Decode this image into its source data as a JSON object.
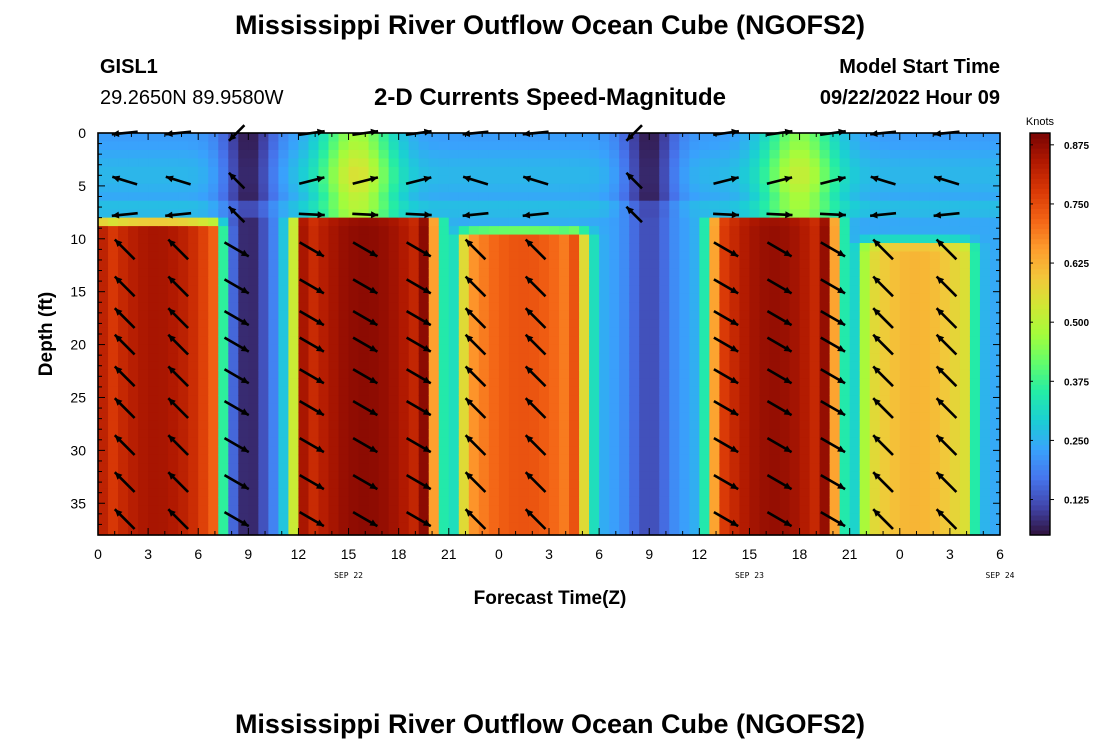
{
  "header": {
    "title": "Mississippi River Outflow Ocean Cube (NGOFS2)",
    "station": "GISL1",
    "coords": "29.2650N  89.9580W",
    "subtitle": "2-D Currents Speed-Magnitude",
    "model_start_label": "Model Start Time",
    "model_start_value": "09/22/2022 Hour 09"
  },
  "footer": {
    "title": "Mississippi River Outflow Ocean Cube (NGOFS2)"
  },
  "chart_data": {
    "type": "heatmap",
    "xlabel": "Forecast Time(Z)",
    "ylabel": "Depth (ft)",
    "x_tick_labels": [
      "0",
      "3",
      "6",
      "9",
      "12",
      "15",
      "18",
      "21",
      "0",
      "3",
      "6",
      "9",
      "12",
      "15",
      "18",
      "21",
      "0",
      "3",
      "6"
    ],
    "date_labels": [
      {
        "hour": 15,
        "label": "SEP 22"
      },
      {
        "hour": 39,
        "label": "SEP 23"
      },
      {
        "hour": 54,
        "label": "SEP 24"
      }
    ],
    "xlim_hours": [
      0,
      54
    ],
    "y_tick_labels": [
      "0",
      "5",
      "10",
      "15",
      "20",
      "25",
      "30",
      "35"
    ],
    "ylim_ft": [
      0,
      38
    ],
    "colorbar": {
      "unit": "Knots",
      "ticks": [
        "0.125",
        "0.250",
        "0.375",
        "0.500",
        "0.625",
        "0.750",
        "0.875"
      ],
      "range": [
        0.05,
        0.9
      ]
    },
    "model": {
      "surface_layer_max_ft": 8,
      "surface_peaks": [
        {
          "hour": 15.5,
          "speed": 0.55
        },
        {
          "hour": 42,
          "speed": 0.52
        }
      ],
      "surface_minima": [
        {
          "hour": 9,
          "speed": 0.07
        },
        {
          "hour": 33,
          "speed": 0.07
        }
      ],
      "surface_base_speed": 0.26,
      "deep_lobes": [
        {
          "start": 0.5,
          "end": 6.5,
          "top_ft": 9,
          "peak": 0.85
        },
        {
          "start": 12.5,
          "end": 19.5,
          "top_ft": 8.5,
          "peak": 0.88
        },
        {
          "start": 22.5,
          "end": 28.5,
          "top_ft": 10,
          "peak": 0.74
        },
        {
          "start": 37.5,
          "end": 43.5,
          "top_ft": 8.5,
          "peak": 0.87
        },
        {
          "start": 46.5,
          "end": 51.5,
          "top_ft": 11,
          "peak": 0.62
        }
      ],
      "deep_minima": [
        {
          "hour": 9,
          "speed": 0.07
        },
        {
          "hour": 33,
          "speed": 0.12
        }
      ],
      "deep_base_speed": 0.24
    },
    "arrows": {
      "columns_hours": [
        1.6,
        4.8,
        8.3,
        12.8,
        16.0,
        19.2,
        22.6,
        26.2,
        32.1,
        37.6,
        40.8,
        44.0,
        47.0,
        50.8
      ],
      "surface_rows_ft": [
        0,
        4.5,
        7.7
      ],
      "deep_rows_ft": [
        11,
        14.5,
        17.5,
        20,
        23,
        26,
        29.5,
        33,
        36.5
      ]
    }
  },
  "colors": {
    "arrow": "#000000",
    "scale": [
      "#30123b",
      "#4145ab",
      "#4675ed",
      "#39a2fc",
      "#1bcfd4",
      "#24eca6",
      "#61fc6c",
      "#a4fc3b",
      "#d1e834",
      "#f3c63a",
      "#fe9b2d",
      "#f36315",
      "#d93806",
      "#b11901",
      "#7a0403"
    ]
  }
}
